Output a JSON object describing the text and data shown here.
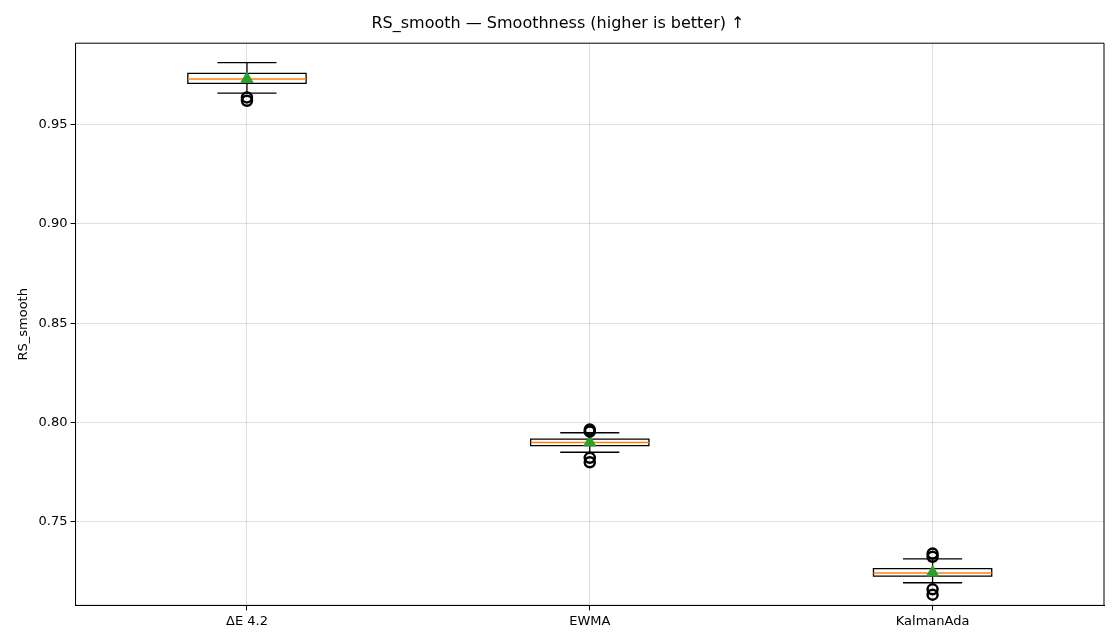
{
  "chart_data": {
    "type": "box",
    "title": "RS_smooth — Smoothness (higher is better) ↑",
    "ylabel": "RS_smooth",
    "categories": [
      "ΔE 4.2",
      "EWMA",
      "KalmanAda"
    ],
    "series": [
      {
        "boxes": [
          {
            "low": 0.9659,
            "q1": 0.9708,
            "median": 0.973,
            "q3": 0.9758,
            "high": 0.9812,
            "mean": 0.973,
            "outliers": [
              0.9637,
              0.962
            ]
          },
          {
            "low": 0.7851,
            "q1": 0.7884,
            "median": 0.79,
            "q3": 0.7917,
            "high": 0.7949,
            "mean": 0.79,
            "outliers": [
              0.7965,
              0.7955,
              0.7823,
              0.78
            ]
          },
          {
            "low": 0.7194,
            "q1": 0.7227,
            "median": 0.7243,
            "q3": 0.7265,
            "high": 0.7314,
            "mean": 0.7245,
            "outliers": [
              0.7341,
              0.7325,
              0.7161,
              0.7134
            ]
          }
        ]
      }
    ],
    "ylim": [
      0.708,
      0.991
    ],
    "yticks": [
      {
        "value": 0.75,
        "label": "0.75"
      },
      {
        "value": 0.8,
        "label": "0.80"
      },
      {
        "value": 0.85,
        "label": "0.85"
      },
      {
        "value": 0.9,
        "label": "0.90"
      },
      {
        "value": 0.95,
        "label": "0.95"
      }
    ],
    "grid": true
  }
}
